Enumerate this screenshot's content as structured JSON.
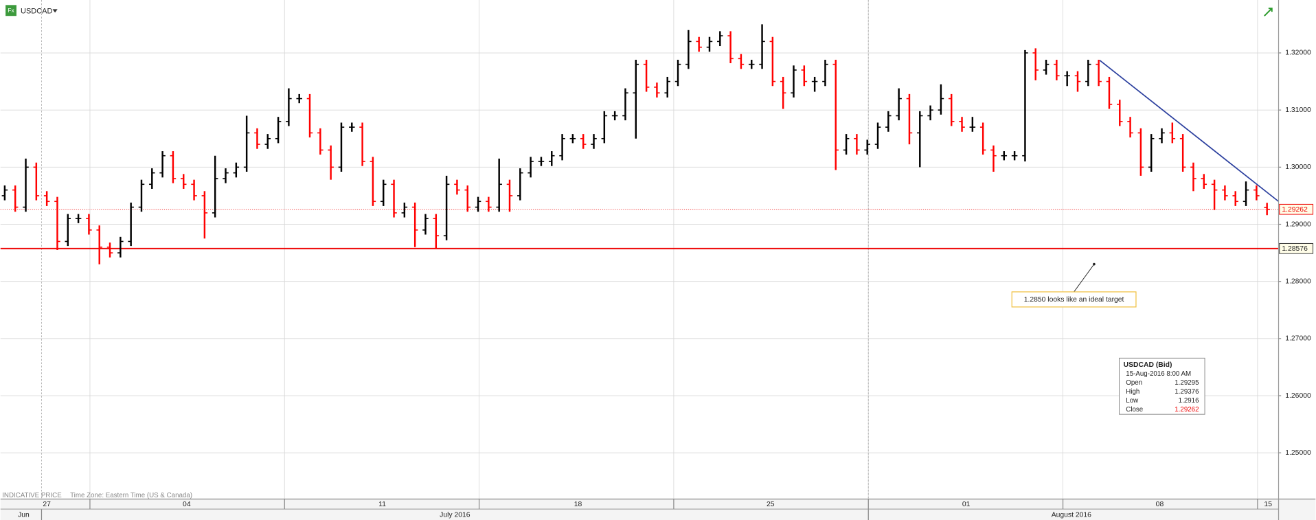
{
  "header": {
    "icon": "Fx",
    "symbol": "USDCAD"
  },
  "footer": {
    "note": "INDICATIVE PRICE",
    "timezone": "Time Zone: Eastern Time (US & Canada)"
  },
  "annotation": {
    "text": "1.2850 looks like an ideal target"
  },
  "info_box": {
    "title": "USDCAD (Bid)",
    "time": "15-Aug-2016 8:00 AM",
    "rows": [
      {
        "label": "Open",
        "value": 1.29295
      },
      {
        "label": "High",
        "value": 1.29376
      },
      {
        "label": "Low",
        "value": 1.2916
      },
      {
        "label": "Close",
        "value": 1.29262
      }
    ]
  },
  "chart_data": {
    "type": "ohlc",
    "up_color": "#000000",
    "down_color": "#ff0000",
    "ylim": [
      1.24191,
      1.32926
    ],
    "xlim": [
      -0.4,
      121.1
    ],
    "yticks": [
      {
        "value": 1.25,
        "label": "1.25000"
      },
      {
        "value": 1.26,
        "label": "1.26000"
      },
      {
        "value": 1.27,
        "label": "1.27000"
      },
      {
        "value": 1.28,
        "label": "1.28000"
      },
      {
        "value": 1.29,
        "label": "1.29000"
      },
      {
        "value": 1.3,
        "label": "1.30000"
      },
      {
        "value": 1.31,
        "label": "1.31000"
      },
      {
        "value": 1.32,
        "label": "1.32000"
      }
    ],
    "grid": true,
    "xticks": [
      {
        "value": 4.0,
        "label": "27"
      },
      {
        "value": 17.3,
        "label": "04"
      },
      {
        "value": 35.9,
        "label": "11"
      },
      {
        "value": 54.5,
        "label": "18"
      },
      {
        "value": 72.8,
        "label": "25"
      },
      {
        "value": 91.4,
        "label": "01"
      },
      {
        "value": 109.8,
        "label": "08"
      },
      {
        "value": 120.1,
        "label": "15"
      }
    ],
    "week_separators": [
      8.1,
      26.6,
      45.1,
      63.6,
      82.1,
      100.6,
      119.1
    ],
    "months": [
      {
        "value": 1.8,
        "label": "Jun"
      },
      {
        "value": 42.8,
        "label": "July 2016"
      },
      {
        "value": 101.4,
        "label": "August 2016"
      }
    ],
    "month_separators": [
      3.5,
      82.1
    ],
    "levels": [
      {
        "value": 1.28576,
        "color": "#ee0000"
      }
    ],
    "last_price": {
      "value": 1.29262,
      "color": "#ee0000"
    },
    "trendline": {
      "x": [
        104.1,
        121.1
      ],
      "y": [
        1.3187,
        1.294
      ],
      "color": "#2b3f9e"
    },
    "open": [
      1.295,
      1.296,
      1.293,
      1.3,
      1.295,
      1.294,
      1.287,
      1.291,
      1.291,
      1.289,
      1.286,
      1.285,
      1.287,
      1.293,
      1.297,
      1.299,
      1.302,
      1.298,
      1.297,
      1.295,
      1.292,
      1.298,
      1.299,
      1.3,
      1.306,
      1.304,
      1.305,
      1.308,
      1.312,
      1.312,
      1.306,
      1.303,
      1.3,
      1.307,
      1.307,
      1.301,
      1.294,
      1.297,
      1.292,
      1.293,
      1.289,
      1.291,
      1.288,
      1.297,
      1.296,
      1.293,
      1.294,
      1.293,
      1.297,
      1.295,
      1.299,
      1.301,
      1.301,
      1.302,
      1.305,
      1.305,
      1.304,
      1.305,
      1.309,
      1.309,
      1.313,
      1.318,
      1.314,
      1.313,
      1.315,
      1.318,
      1.322,
      1.321,
      1.322,
      1.323,
      1.319,
      1.318,
      1.318,
      1.322,
      1.315,
      1.313,
      1.317,
      1.315,
      1.315,
      1.318,
      1.303,
      1.305,
      1.303,
      1.304,
      1.307,
      1.309,
      1.312,
      1.306,
      1.309,
      1.31,
      1.312,
      1.308,
      1.307,
      1.307,
      1.303,
      1.302,
      1.302,
      1.302,
      1.32,
      1.317,
      1.318,
      1.316,
      1.316,
      1.315,
      1.318,
      1.315,
      1.311,
      1.308,
      1.306,
      1.3,
      1.305,
      1.306,
      1.305,
      1.3,
      1.298,
      1.297,
      1.296,
      1.295,
      1.294,
      1.296,
      1.29295
    ],
    "high": [
      1.2968,
      1.2968,
      1.3015,
      1.3008,
      1.2958,
      1.2948,
      1.2918,
      1.2918,
      1.2918,
      1.2898,
      1.2868,
      1.2878,
      1.2938,
      1.2978,
      1.2998,
      1.3028,
      1.3028,
      1.2988,
      1.2978,
      1.2958,
      1.302,
      1.2998,
      1.3008,
      1.309,
      1.3068,
      1.3058,
      1.3088,
      1.3138,
      1.3128,
      1.3128,
      1.3068,
      1.3038,
      1.3078,
      1.3078,
      1.3078,
      1.3018,
      1.2978,
      1.2978,
      1.2938,
      1.2938,
      1.2918,
      1.2918,
      1.2985,
      1.2978,
      1.2968,
      1.2948,
      1.2948,
      1.3015,
      1.2978,
      1.2998,
      1.3018,
      1.3018,
      1.3028,
      1.3058,
      1.3058,
      1.3058,
      1.3058,
      1.3098,
      1.3098,
      1.3138,
      1.3188,
      1.3188,
      1.3148,
      1.3158,
      1.3188,
      1.324,
      1.3228,
      1.3228,
      1.3238,
      1.3238,
      1.3198,
      1.3188,
      1.325,
      1.3228,
      1.3158,
      1.3178,
      1.3178,
      1.3158,
      1.3188,
      1.3188,
      1.3058,
      1.3058,
      1.3048,
      1.3078,
      1.3098,
      1.3138,
      1.3128,
      1.3098,
      1.3108,
      1.3145,
      1.3128,
      1.3088,
      1.3088,
      1.3078,
      1.3038,
      1.3028,
      1.3028,
      1.3205,
      1.3208,
      1.3188,
      1.3188,
      1.3168,
      1.3168,
      1.3188,
      1.3188,
      1.3158,
      1.3118,
      1.3088,
      1.3068,
      1.3058,
      1.3068,
      1.3078,
      1.3058,
      1.3008,
      1.2988,
      1.2978,
      1.2968,
      1.2958,
      1.2975,
      1.2968,
      1.29376
    ],
    "low": [
      1.2942,
      1.2922,
      1.2922,
      1.2942,
      1.2932,
      1.2855,
      1.2862,
      1.2902,
      1.2882,
      1.283,
      1.2842,
      1.2842,
      1.2862,
      1.2922,
      1.2962,
      1.2982,
      1.2972,
      1.2962,
      1.2942,
      1.2875,
      1.2912,
      1.2972,
      1.2982,
      1.2992,
      1.3032,
      1.3032,
      1.3042,
      1.3072,
      1.3112,
      1.3052,
      1.3022,
      1.2978,
      1.2992,
      1.3062,
      1.3002,
      1.2932,
      1.2932,
      1.2912,
      1.2912,
      1.286,
      1.2882,
      1.2858,
      1.2872,
      1.2952,
      1.2922,
      1.2922,
      1.2922,
      1.2922,
      1.2922,
      1.2942,
      1.2982,
      1.3002,
      1.3002,
      1.3012,
      1.3042,
      1.3032,
      1.3032,
      1.3042,
      1.3082,
      1.3082,
      1.305,
      1.3132,
      1.3122,
      1.3122,
      1.3142,
      1.3172,
      1.3202,
      1.3202,
      1.3212,
      1.3182,
      1.3172,
      1.3172,
      1.3172,
      1.3142,
      1.3102,
      1.3122,
      1.3142,
      1.3132,
      1.3142,
      1.2995,
      1.3022,
      1.3022,
      1.3022,
      1.3032,
      1.3062,
      1.3082,
      1.304,
      1.3,
      1.3082,
      1.3092,
      1.3072,
      1.3062,
      1.3062,
      1.3022,
      1.2992,
      1.3012,
      1.3012,
      1.301,
      1.3152,
      1.3162,
      1.3152,
      1.3142,
      1.3132,
      1.3142,
      1.3142,
      1.3102,
      1.3072,
      1.3052,
      1.2985,
      1.2992,
      1.3042,
      1.3042,
      1.2992,
      1.2958,
      1.2962,
      1.2925,
      1.2942,
      1.2932,
      1.2932,
      1.2942,
      1.2916
    ],
    "close": [
      1.296,
      1.293,
      1.3,
      1.295,
      1.294,
      1.287,
      1.291,
      1.291,
      1.289,
      1.286,
      1.285,
      1.287,
      1.293,
      1.297,
      1.299,
      1.302,
      1.298,
      1.297,
      1.295,
      1.292,
      1.298,
      1.299,
      1.3,
      1.306,
      1.304,
      1.305,
      1.308,
      1.312,
      1.312,
      1.306,
      1.303,
      1.3,
      1.307,
      1.307,
      1.301,
      1.294,
      1.297,
      1.292,
      1.293,
      1.289,
      1.291,
      1.288,
      1.297,
      1.296,
      1.293,
      1.294,
      1.293,
      1.297,
      1.295,
      1.299,
      1.301,
      1.301,
      1.302,
      1.305,
      1.305,
      1.304,
      1.305,
      1.309,
      1.309,
      1.313,
      1.318,
      1.314,
      1.313,
      1.315,
      1.318,
      1.322,
      1.321,
      1.322,
      1.323,
      1.319,
      1.318,
      1.318,
      1.322,
      1.315,
      1.313,
      1.317,
      1.315,
      1.315,
      1.318,
      1.303,
      1.305,
      1.303,
      1.304,
      1.307,
      1.309,
      1.312,
      1.306,
      1.309,
      1.31,
      1.312,
      1.308,
      1.307,
      1.307,
      1.303,
      1.302,
      1.302,
      1.302,
      1.32,
      1.317,
      1.318,
      1.316,
      1.316,
      1.315,
      1.318,
      1.315,
      1.311,
      1.308,
      1.306,
      1.3,
      1.305,
      1.306,
      1.305,
      1.3,
      1.298,
      1.297,
      1.296,
      1.295,
      1.294,
      1.296,
      1.295,
      1.29262
    ]
  }
}
